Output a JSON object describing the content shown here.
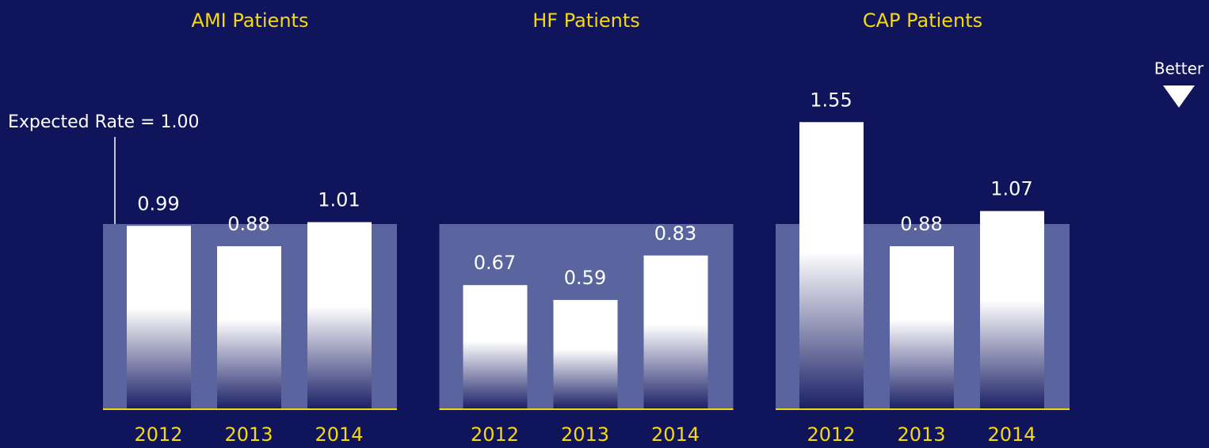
{
  "expected_rate": 1,
  "annotation": "Expected Rate = 1.00",
  "better_label": "Better",
  "chart_data": [
    {
      "type": "bar",
      "title": "AMI Patients",
      "categories": [
        "2012",
        "2013",
        "2014"
      ],
      "values": [
        0.99,
        0.88,
        1.01
      ],
      "value_labels": [
        "0.99",
        "0.88",
        "1.01"
      ],
      "color": "#ffffff",
      "ylim": [
        0,
        2
      ]
    },
    {
      "type": "bar",
      "title": "HF Patients",
      "categories": [
        "2012",
        "2013",
        "2014"
      ],
      "values": [
        0.67,
        0.59,
        0.83
      ],
      "value_labels": [
        "0.67",
        "0.59",
        "0.83"
      ],
      "color": "#ffffff",
      "ylim": [
        0,
        2
      ]
    },
    {
      "type": "bar",
      "title": "CAP Patients",
      "categories": [
        "2012",
        "2013",
        "2014"
      ],
      "values": [
        1.55,
        0.88,
        1.07
      ],
      "value_labels": [
        "1.55",
        "0.88",
        "1.07"
      ],
      "color": "#ffffff",
      "ylim": [
        0,
        2
      ]
    }
  ]
}
